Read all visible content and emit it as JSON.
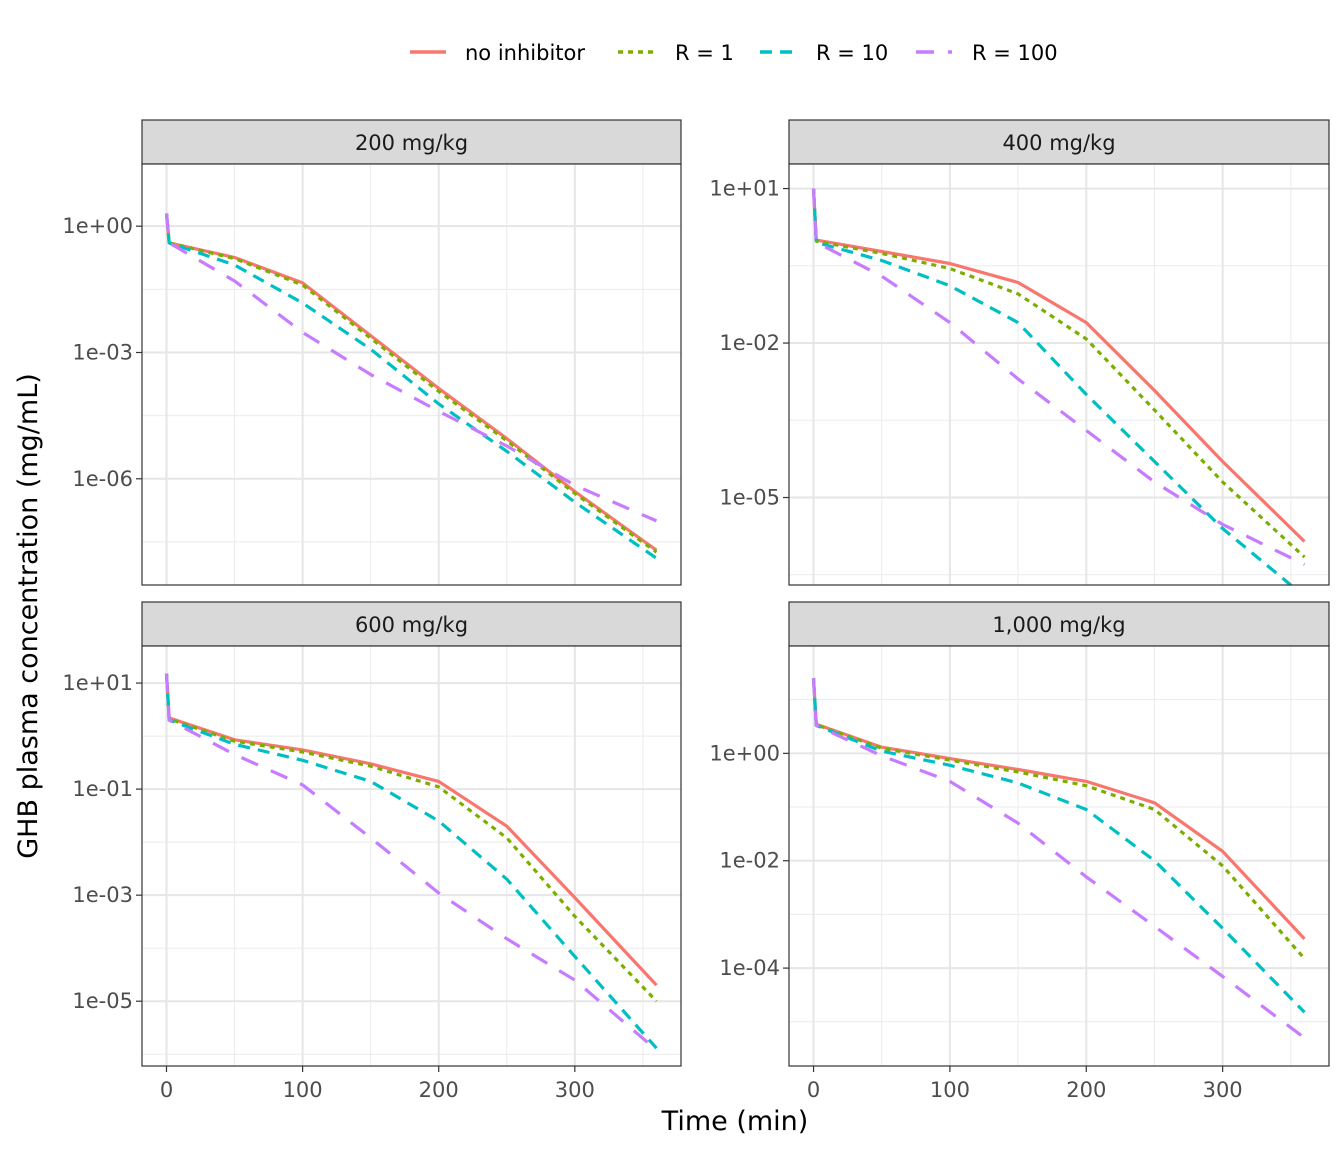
{
  "chart_data": {
    "type": "line",
    "xlabel": "Time (min)",
    "ylabel": "GHB plasma concentration (mg/mL)",
    "y_scale": "log10",
    "grid": true,
    "legend_position": "top",
    "legend": [
      {
        "name": "no inhibitor",
        "color": "#F8766D",
        "dash": "solid"
      },
      {
        "name": "R = 1",
        "color": "#7CAE00",
        "dash": "dotted"
      },
      {
        "name": "R = 10",
        "color": "#00BFC4",
        "dash": "dashed"
      },
      {
        "name": "R = 100",
        "color": "#C77CFF",
        "dash": "longdash"
      }
    ],
    "xlim": [
      -18,
      378
    ],
    "x_ticks": [
      0,
      100,
      200,
      300
    ],
    "x_tick_labels": [
      "0",
      "100",
      "200",
      "300"
    ],
    "panels": [
      {
        "title": "200 mg/kg",
        "ylim": [
          3e-09,
          30
        ],
        "y_ticks": [
          1,
          0.001,
          1e-06
        ],
        "y_tick_labels": [
          "1e+00",
          "1e-03",
          "1e-06"
        ],
        "series": [
          {
            "name": "no inhibitor",
            "x": [
              0,
              2,
              50,
              100,
              130,
              200,
              250,
              300,
              360
            ],
            "y": [
              2,
              0.4,
              0.18,
              0.045,
              0.008,
              0.00014,
              9e-06,
              5e-07,
              2e-08
            ]
          },
          {
            "name": "R = 1",
            "x": [
              0,
              2,
              50,
              100,
              130,
              200,
              250,
              300,
              360
            ],
            "y": [
              2,
              0.4,
              0.17,
              0.04,
              0.007,
              0.00012,
              8e-06,
              4.5e-07,
              1.8e-08
            ]
          },
          {
            "name": "R = 10",
            "x": [
              0,
              2,
              50,
              100,
              150,
              200,
              250,
              300,
              360
            ],
            "y": [
              2,
              0.4,
              0.12,
              0.015,
              0.0012,
              6e-05,
              4.5e-06,
              2.8e-07,
              1.3e-08
            ]
          },
          {
            "name": "R = 100",
            "x": [
              0,
              2,
              50,
              100,
              150,
              200,
              250,
              300,
              360
            ],
            "y": [
              2,
              0.4,
              0.05,
              0.003,
              0.0003,
              4e-05,
              6e-06,
              7e-07,
              1e-07
            ]
          }
        ]
      },
      {
        "title": "400 mg/kg",
        "ylim": [
          2e-07,
          30
        ],
        "y_ticks": [
          10,
          0.01,
          1e-05
        ],
        "y_tick_labels": [
          "1e+01",
          "1e-02",
          "1e-05"
        ],
        "series": [
          {
            "name": "no inhibitor",
            "x": [
              0,
              2,
              50,
              100,
              150,
              200,
              250,
              300,
              360
            ],
            "y": [
              10,
              1.0,
              0.6,
              0.35,
              0.15,
              0.025,
              0.0012,
              5e-05,
              1.4e-06
            ]
          },
          {
            "name": "R = 1",
            "x": [
              0,
              2,
              50,
              100,
              150,
              200,
              250,
              300,
              360
            ],
            "y": [
              10,
              0.95,
              0.55,
              0.28,
              0.09,
              0.012,
              0.0005,
              2e-05,
              7e-07
            ]
          },
          {
            "name": "R = 10",
            "x": [
              0,
              2,
              50,
              100,
              150,
              200,
              250,
              300,
              360
            ],
            "y": [
              10,
              0.9,
              0.4,
              0.13,
              0.025,
              0.001,
              5e-05,
              2.5e-06,
              1.2e-07
            ]
          },
          {
            "name": "R = 100",
            "x": [
              0,
              2,
              50,
              100,
              150,
              200,
              250,
              300,
              360
            ],
            "y": [
              10,
              0.9,
              0.2,
              0.025,
              0.002,
              0.0002,
              2e-05,
              3e-06,
              5e-07
            ]
          }
        ]
      },
      {
        "title": "600 mg/kg",
        "ylim": [
          6e-07,
          50
        ],
        "y_ticks": [
          10,
          0.1,
          0.001,
          1e-05
        ],
        "y_tick_labels": [
          "1e+01",
          "1e-01",
          "1e-03",
          "1e-05"
        ],
        "series": [
          {
            "name": "no inhibitor",
            "x": [
              0,
              2,
              50,
              100,
              150,
              200,
              250,
              300,
              360
            ],
            "y": [
              15,
              2.2,
              0.85,
              0.55,
              0.3,
              0.14,
              0.02,
              0.0009,
              2e-05
            ]
          },
          {
            "name": "R = 1",
            "x": [
              0,
              2,
              50,
              100,
              150,
              200,
              250,
              300,
              360
            ],
            "y": [
              15,
              2.1,
              0.8,
              0.5,
              0.27,
              0.11,
              0.012,
              0.0004,
              1e-05
            ]
          },
          {
            "name": "R = 10",
            "x": [
              0,
              2,
              50,
              100,
              150,
              200,
              250,
              300,
              360
            ],
            "y": [
              15,
              2.0,
              0.7,
              0.35,
              0.14,
              0.025,
              0.002,
              7e-05,
              1.3e-06
            ]
          },
          {
            "name": "R = 100",
            "x": [
              0,
              2,
              50,
              100,
              150,
              200,
              250,
              300,
              360
            ],
            "y": [
              15,
              2.0,
              0.45,
              0.12,
              0.012,
              0.0011,
              0.00015,
              2.5e-05,
              1.2e-06
            ]
          }
        ]
      },
      {
        "title": "1,000 mg/kg",
        "ylim": [
          1.5e-06,
          100
        ],
        "y_ticks": [
          1,
          0.01,
          0.0001
        ],
        "y_tick_labels": [
          "1e+00",
          "1e-02",
          "1e-04"
        ],
        "series": [
          {
            "name": "no inhibitor",
            "x": [
              0,
              2,
              50,
              100,
              150,
              200,
              250,
              300,
              360
            ],
            "y": [
              25,
              3.5,
              1.3,
              0.8,
              0.5,
              0.3,
              0.12,
              0.015,
              0.00035
            ]
          },
          {
            "name": "R = 1",
            "x": [
              0,
              2,
              50,
              100,
              150,
              200,
              250,
              300,
              360
            ],
            "y": [
              25,
              3.4,
              1.25,
              0.75,
              0.45,
              0.25,
              0.09,
              0.008,
              0.00015
            ]
          },
          {
            "name": "R = 10",
            "x": [
              0,
              2,
              50,
              100,
              150,
              200,
              250,
              300,
              360
            ],
            "y": [
              25,
              3.3,
              1.1,
              0.6,
              0.28,
              0.09,
              0.01,
              0.00055,
              1.5e-05
            ]
          },
          {
            "name": "R = 100",
            "x": [
              0,
              2,
              50,
              100,
              150,
              200,
              250,
              300,
              360
            ],
            "y": [
              25,
              3.3,
              0.9,
              0.3,
              0.05,
              0.005,
              0.0006,
              7e-05,
              5e-06
            ]
          }
        ]
      }
    ]
  }
}
